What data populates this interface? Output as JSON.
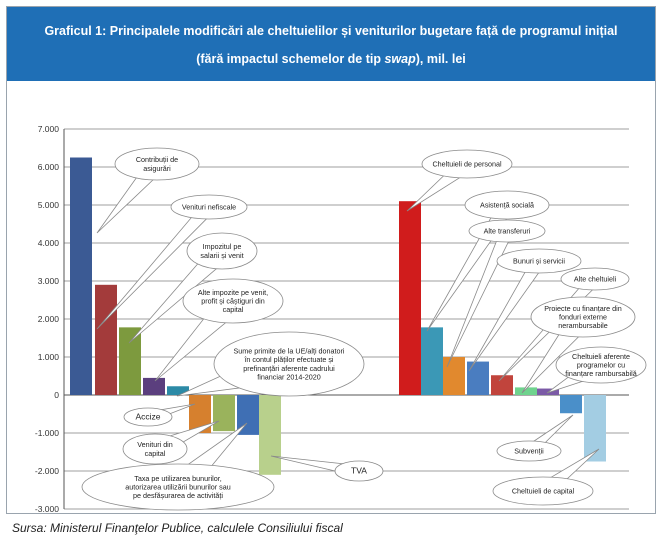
{
  "title": {
    "line1": "Graficul 1: Principalele modificări ale cheltuielilor și veniturilor bugetare față de programul inițial",
    "line2": "(fără impactul schemelor de tip swap), mil. lei"
  },
  "source": "Sursa: Ministerul Finanţelor Publice, calculele Consiliului fiscal",
  "chart_data": {
    "type": "bar",
    "ylim": [
      -3000,
      7000
    ],
    "yticks": [
      7000,
      6000,
      5000,
      4000,
      3000,
      2000,
      1000,
      0,
      -1000,
      -2000,
      -3000
    ],
    "ytick_labels": [
      "7.000",
      "6.000",
      "5.000",
      "4.000",
      "3.000",
      "2.000",
      "1.000",
      "0",
      "-1.000",
      "-2.000",
      "-3.000"
    ],
    "grid": true,
    "groups": [
      {
        "name": "venituri",
        "bars": [
          {
            "label": "Contribuții de asigurări",
            "value": 6250,
            "color": "#3b5a94"
          },
          {
            "label": "Venituri nefiscale",
            "value": 2900,
            "color": "#a33b3b"
          },
          {
            "label": "Impozitul pe salarii și venit",
            "value": 1780,
            "color": "#7d9a3e"
          },
          {
            "label": "Alte impozite pe venit, profit și câștiguri din capital",
            "value": 450,
            "color": "#5b3f7e"
          },
          {
            "label": "Sume primite de la UE/alți donatori în contul plăților efectuate și prefinanțări aferente cadrului financiar 2014-2020",
            "value": 230,
            "color": "#2c8aa6"
          },
          {
            "label": "Accize",
            "value": -1000,
            "color": "#d6802e"
          },
          {
            "label": "Venituri din capital",
            "value": -950,
            "color": "#9ab35c"
          },
          {
            "label": "Taxa pe utilizarea bunurilor, autorizarea utilizării bunurilor sau pe desfășurarea de activități",
            "value": -1050,
            "color": "#3f6fb4"
          },
          {
            "label": "TVA",
            "value": -2100,
            "color": "#b8d08c"
          }
        ]
      },
      {
        "name": "cheltuieli",
        "bars": [
          {
            "label": "Cheltuieli de personal",
            "value": 5100,
            "color": "#d01c1c"
          },
          {
            "label": "Asistență socială",
            "value": 1780,
            "color": "#3b98b6"
          },
          {
            "label": "Alte transferuri",
            "value": 1000,
            "color": "#e1892e"
          },
          {
            "label": "Bunuri și servicii",
            "value": 880,
            "color": "#4a7dc0"
          },
          {
            "label": "Alte cheltuieli",
            "value": 520,
            "color": "#c1443c"
          },
          {
            "label": "Proiecte cu finanțare din fonduri externe nerambursabile",
            "value": 200,
            "color": "#6fd38e"
          },
          {
            "label": "Cheltuieli aferente programelor cu finanțare rambursabilă",
            "value": 170,
            "color": "#7b5aa6"
          },
          {
            "label": "Subvenții",
            "value": -480,
            "color": "#4a8fc9"
          },
          {
            "label": "Cheltuieli de capital",
            "value": -1750,
            "color": "#a3cde3"
          }
        ]
      }
    ]
  }
}
